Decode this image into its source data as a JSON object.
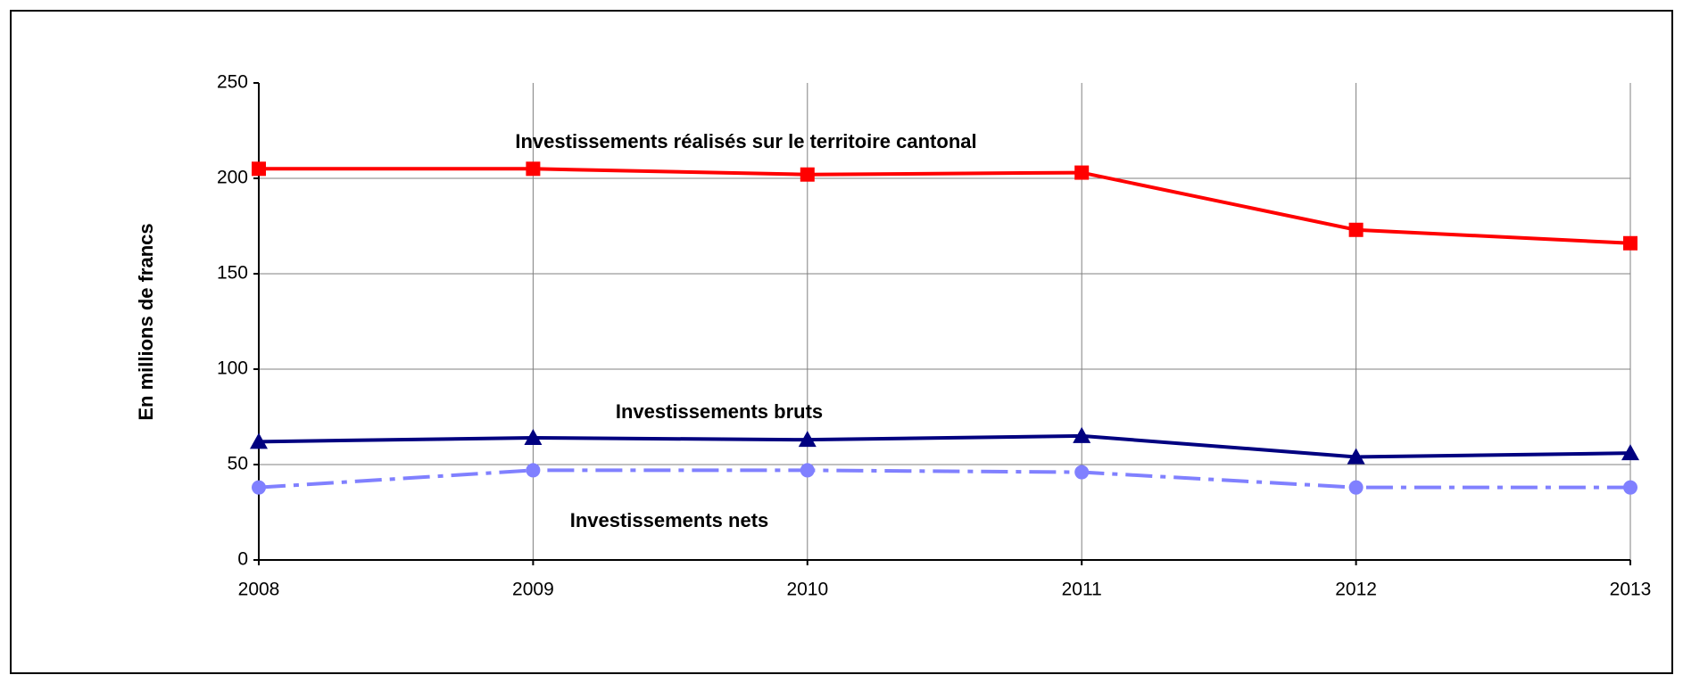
{
  "chart_data": {
    "type": "line",
    "y_label": "En millions de francs",
    "categories": [
      "2008",
      "2009",
      "2010",
      "2011",
      "2012",
      "2013"
    ],
    "series": [
      {
        "name": "Investissements réalisés sur le territoire cantonal",
        "color": "#ff0000",
        "marker": "square",
        "values": [
          205,
          205,
          202,
          203,
          173,
          166
        ]
      },
      {
        "name": "Investissements bruts",
        "color": "#000080",
        "marker": "triangle",
        "values": [
          62,
          64,
          63,
          65,
          54,
          56
        ]
      },
      {
        "name": "Investissements nets",
        "color": "#8080ff",
        "marker": "circle",
        "dashed": true,
        "values": [
          38,
          47,
          47,
          46,
          38,
          38
        ]
      }
    ],
    "ylim": [
      0,
      250
    ],
    "yticks": [
      0,
      50,
      100,
      150,
      200,
      250
    ],
    "grid": true
  }
}
